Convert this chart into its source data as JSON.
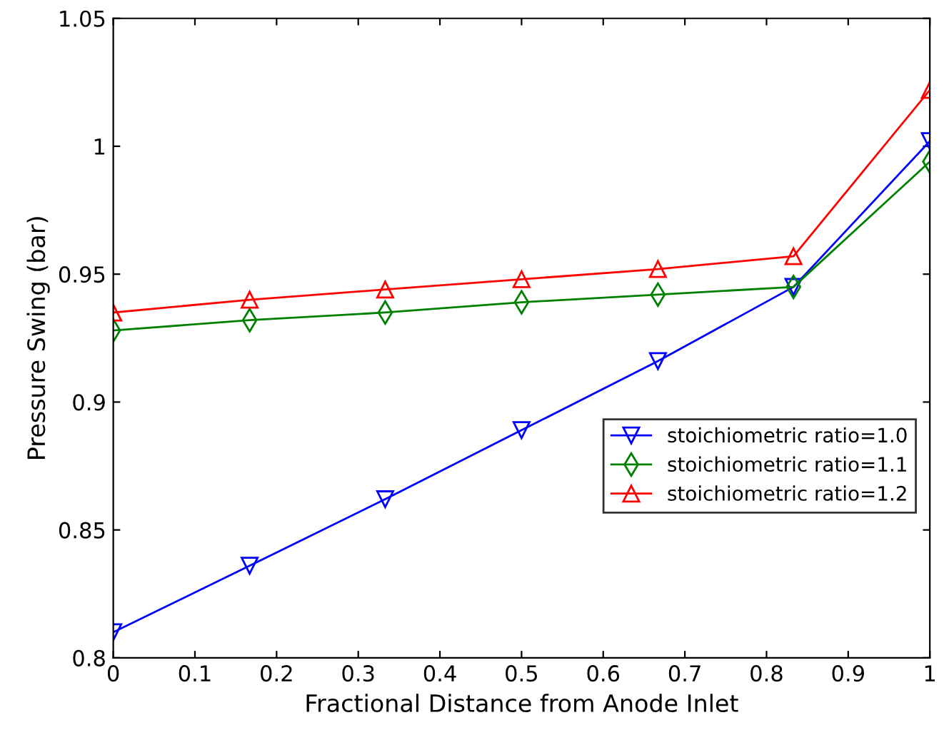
{
  "chart_data": {
    "type": "line",
    "xlabel": "Fractional Distance from Anode Inlet",
    "ylabel": "Pressure Swing (bar)",
    "x": [
      0,
      0.167,
      0.333,
      0.5,
      0.667,
      0.833,
      1
    ],
    "series": [
      {
        "name": "stoichiometric ratio=1.0",
        "color": "#0000ff",
        "marker": "triangle_down",
        "values": [
          0.81,
          0.836,
          0.862,
          0.889,
          0.916,
          0.945,
          1.002
        ]
      },
      {
        "name": "stoichiometric ratio=1.1",
        "color": "#008000",
        "marker": "diamond",
        "values": [
          0.928,
          0.932,
          0.935,
          0.939,
          0.942,
          0.945,
          0.994
        ]
      },
      {
        "name": "stoichiometric ratio=1.2",
        "color": "#ff0000",
        "marker": "triangle",
        "values": [
          0.935,
          0.94,
          0.944,
          0.948,
          0.952,
          0.957,
          1.022
        ]
      }
    ],
    "xlim": [
      0,
      1
    ],
    "xticks": [
      0,
      0.1,
      0.2,
      0.3,
      0.4,
      0.5,
      0.6,
      0.7,
      0.8,
      0.9,
      1
    ],
    "ylim": [
      0.8,
      1.05
    ],
    "yticks": [
      0.8,
      0.85,
      0.9,
      0.95,
      1,
      1.05
    ],
    "grid": false,
    "legend": "right",
    "line_style": "solid"
  }
}
